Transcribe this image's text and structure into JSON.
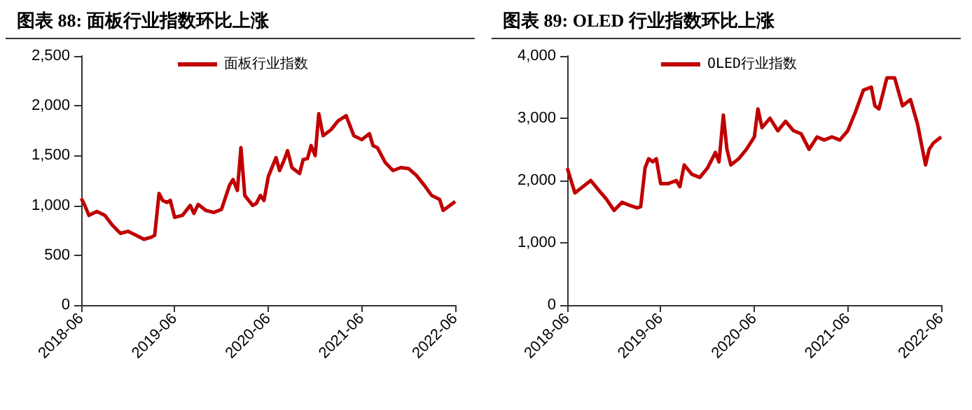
{
  "chart_data": [
    {
      "type": "line",
      "title": "图表 88:  面板行业指数环比上涨",
      "legend": "top",
      "x": [
        "2018-06-01",
        "2018-06-15",
        "2018-07-01",
        "2018-08-01",
        "2018-09-01",
        "2018-10-01",
        "2018-11-01",
        "2018-12-01",
        "2019-01-01",
        "2019-02-01",
        "2019-03-01",
        "2019-03-15",
        "2019-04-01",
        "2019-04-15",
        "2019-05-01",
        "2019-05-15",
        "2019-06-01",
        "2019-07-01",
        "2019-08-01",
        "2019-08-15",
        "2019-09-01",
        "2019-10-01",
        "2019-11-01",
        "2019-12-01",
        "2020-01-01",
        "2020-01-15",
        "2020-02-01",
        "2020-02-15",
        "2020-03-01",
        "2020-04-01",
        "2020-04-15",
        "2020-05-01",
        "2020-05-15",
        "2020-06-01",
        "2020-07-01",
        "2020-07-15",
        "2020-08-01",
        "2020-08-15",
        "2020-09-01",
        "2020-10-01",
        "2020-10-15",
        "2020-11-01",
        "2020-11-15",
        "2020-12-01",
        "2020-12-15",
        "2021-01-01",
        "2021-02-01",
        "2021-03-01",
        "2021-04-01",
        "2021-05-01",
        "2021-06-01",
        "2021-07-01",
        "2021-07-15",
        "2021-08-01",
        "2021-09-01",
        "2021-10-01",
        "2021-11-01",
        "2021-12-01",
        "2022-01-01",
        "2022-02-01",
        "2022-03-01",
        "2022-04-01",
        "2022-04-15",
        "2022-05-01",
        "2022-06-01"
      ],
      "series": [
        {
          "name": "面板行业指数",
          "color": "#c00000",
          "values": [
            1070,
            1000,
            900,
            940,
            900,
            800,
            720,
            740,
            700,
            660,
            680,
            700,
            1120,
            1050,
            1030,
            1050,
            880,
            900,
            1000,
            920,
            1010,
            950,
            930,
            960,
            1200,
            1260,
            1150,
            1580,
            1100,
            1000,
            1020,
            1100,
            1050,
            1290,
            1480,
            1350,
            1450,
            1550,
            1380,
            1320,
            1460,
            1470,
            1600,
            1500,
            1920,
            1700,
            1760,
            1850,
            1900,
            1700,
            1660,
            1720,
            1600,
            1580,
            1430,
            1350,
            1380,
            1370,
            1300,
            1200,
            1100,
            1060,
            950,
            980,
            1040
          ]
        }
      ],
      "xlim": [
        "2018-06",
        "2022-06"
      ],
      "xticks": [
        "2018-06",
        "2019-06",
        "2020-06",
        "2021-06",
        "2022-06"
      ],
      "ylim": [
        0,
        2500
      ],
      "yticks": [
        {
          "value": 0,
          "label": "0"
        },
        500,
        {
          "value": 1000,
          "label": "1,000"
        },
        {
          "value": 1500,
          "label": "1,500"
        },
        {
          "value": 2000,
          "label": "2,000"
        },
        {
          "value": 2500,
          "label": "2,500"
        }
      ]
    },
    {
      "type": "line",
      "title": "图表 89:  OLED 行业指数环比上涨",
      "legend": "top",
      "x": [
        "2018-06-01",
        "2018-07-01",
        "2018-08-01",
        "2018-09-01",
        "2018-10-01",
        "2018-11-01",
        "2018-12-01",
        "2019-01-01",
        "2019-02-01",
        "2019-03-01",
        "2019-03-15",
        "2019-04-01",
        "2019-04-15",
        "2019-05-01",
        "2019-05-15",
        "2019-06-01",
        "2019-07-01",
        "2019-08-01",
        "2019-08-15",
        "2019-09-01",
        "2019-10-01",
        "2019-11-01",
        "2019-12-01",
        "2020-01-01",
        "2020-01-15",
        "2020-02-01",
        "2020-02-15",
        "2020-03-01",
        "2020-04-01",
        "2020-05-01",
        "2020-06-01",
        "2020-06-15",
        "2020-07-01",
        "2020-08-01",
        "2020-09-01",
        "2020-10-01",
        "2020-11-01",
        "2020-12-01",
        "2021-01-01",
        "2021-02-01",
        "2021-03-01",
        "2021-04-01",
        "2021-05-01",
        "2021-06-01",
        "2021-07-01",
        "2021-08-01",
        "2021-09-01",
        "2021-09-15",
        "2021-10-01",
        "2021-11-01",
        "2021-12-01",
        "2022-01-01",
        "2022-02-01",
        "2022-03-01",
        "2022-04-01",
        "2022-04-15",
        "2022-05-01",
        "2022-06-01"
      ],
      "series": [
        {
          "name": "OLED行业指数",
          "color": "#c00000",
          "values": [
            2200,
            1800,
            1900,
            2000,
            1850,
            1700,
            1520,
            1650,
            1600,
            1560,
            1580,
            2200,
            2350,
            2300,
            2350,
            1950,
            1950,
            2000,
            1900,
            2250,
            2100,
            2050,
            2200,
            2450,
            2300,
            3050,
            2500,
            2250,
            2350,
            2500,
            2700,
            3150,
            2850,
            3000,
            2800,
            2950,
            2800,
            2750,
            2500,
            2700,
            2650,
            2700,
            2650,
            2800,
            3100,
            3450,
            3500,
            3200,
            3150,
            3650,
            3650,
            3200,
            3300,
            2900,
            2250,
            2500,
            2600,
            2700
          ]
        }
      ],
      "xlim": [
        "2018-06",
        "2022-06"
      ],
      "xticks": [
        "2018-06",
        "2019-06",
        "2020-06",
        "2021-06",
        "2022-06"
      ],
      "ylim": [
        0,
        4000
      ],
      "yticks": [
        {
          "value": 0,
          "label": "0"
        },
        {
          "value": 1000,
          "label": "1,000"
        },
        {
          "value": 2000,
          "label": "2,000"
        },
        {
          "value": 3000,
          "label": "3,000"
        },
        {
          "value": 4000,
          "label": "4,000"
        }
      ]
    }
  ]
}
